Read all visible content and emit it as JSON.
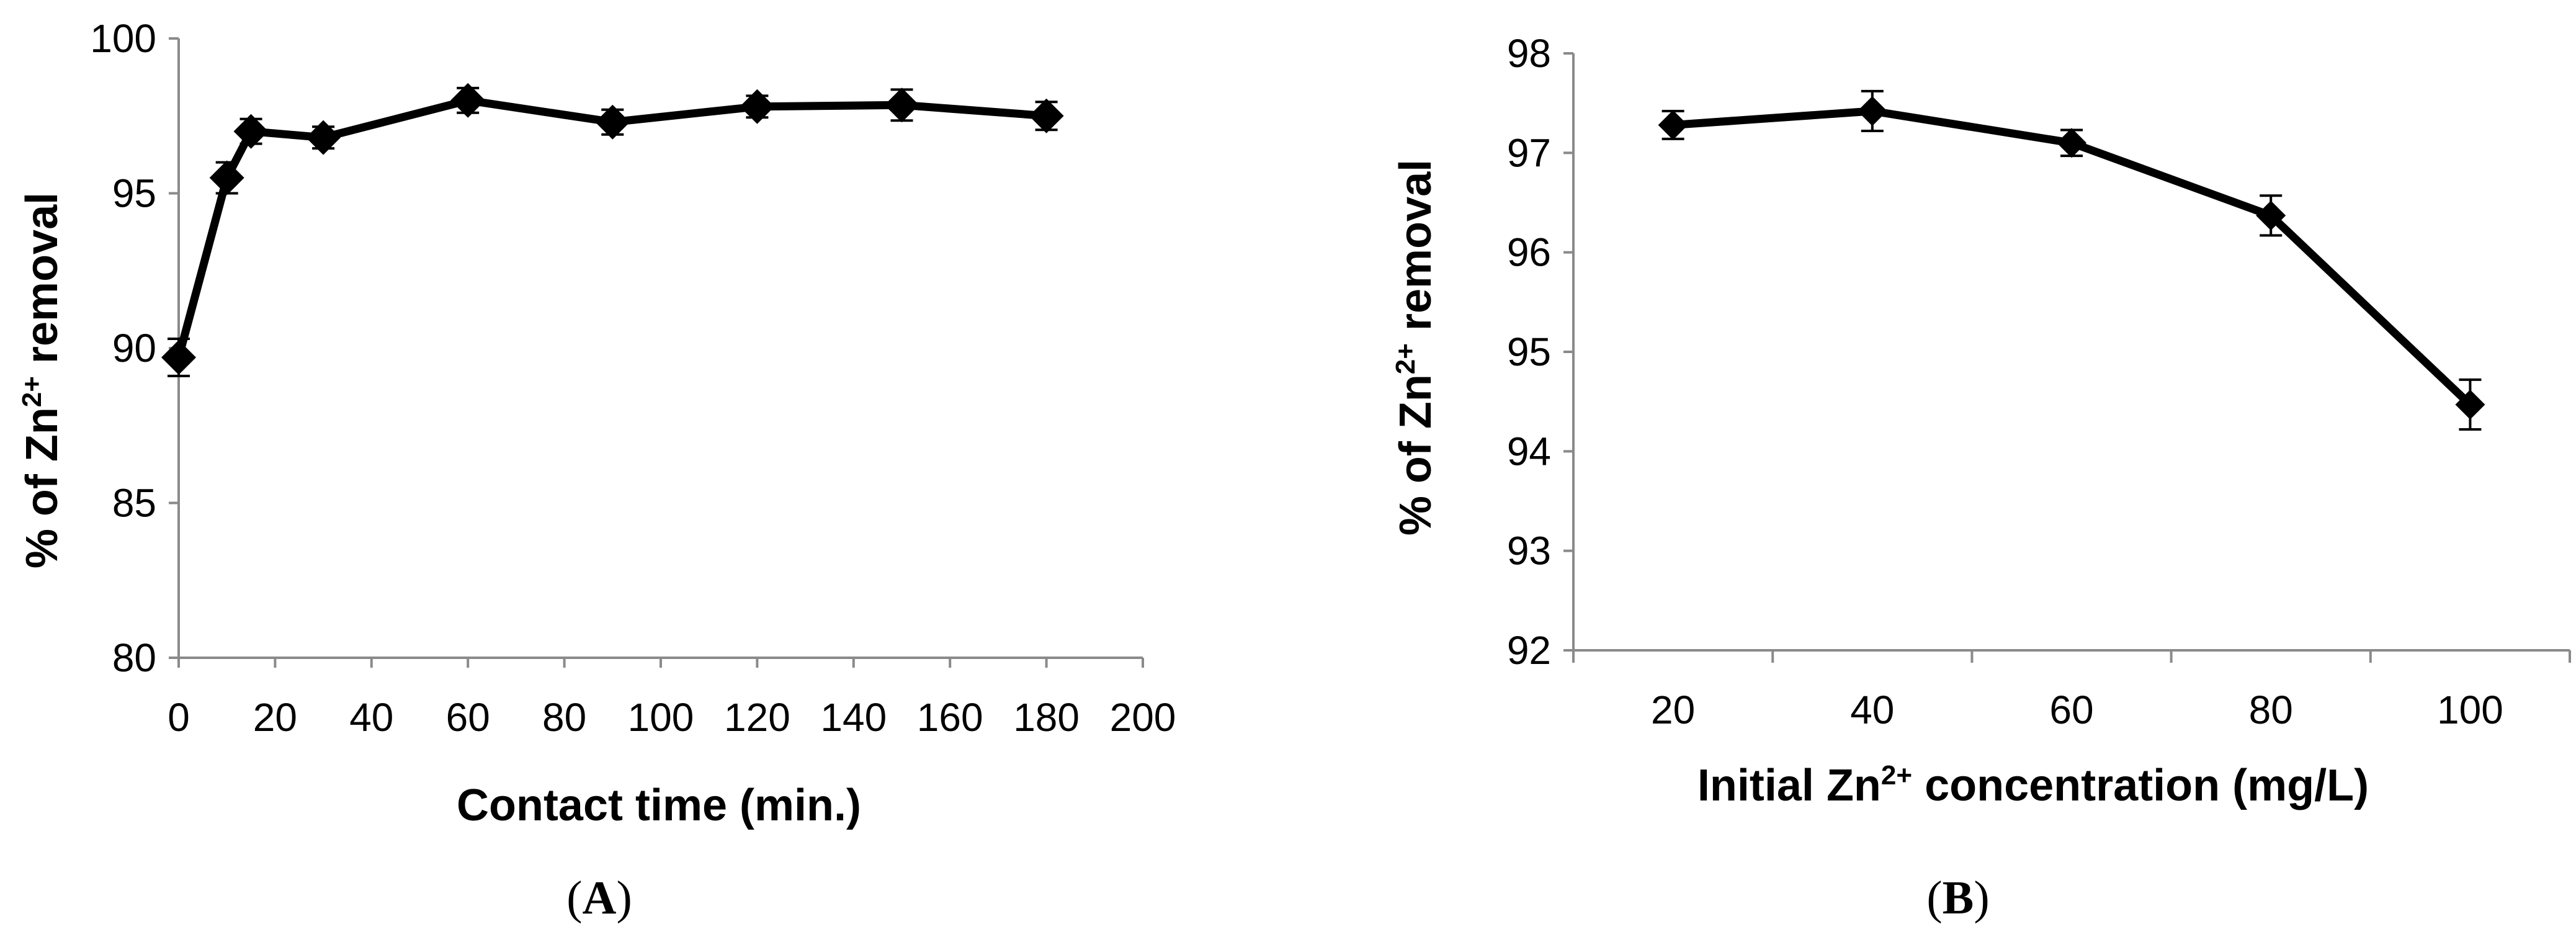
{
  "chart_data": [
    {
      "type": "line",
      "panel_label": "A",
      "xlabel": "Contact time (min.)",
      "ylabel_parts": [
        "% of Zn",
        "2+",
        " removal"
      ],
      "xlim": [
        0,
        200
      ],
      "ylim": [
        80,
        100
      ],
      "x_ticks": [
        0,
        20,
        40,
        60,
        80,
        100,
        120,
        140,
        160,
        180,
        200
      ],
      "y_ticks": [
        80,
        85,
        90,
        95,
        100
      ],
      "grid": false,
      "legend": "none",
      "marker": "diamond",
      "color": "#000000",
      "series": [
        {
          "x": [
            0,
            10,
            15,
            30,
            60,
            90,
            120,
            150,
            180
          ],
          "y": [
            89.7,
            95.5,
            97.0,
            96.8,
            98.0,
            97.3,
            97.8,
            97.85,
            97.5
          ],
          "error": [
            0.6,
            0.5,
            0.4,
            0.35,
            0.4,
            0.4,
            0.35,
            0.5,
            0.45
          ]
        }
      ]
    },
    {
      "type": "line",
      "panel_label": "B",
      "xlabel_parts": [
        "Initial Zn",
        "2+",
        " concentration (mg/L)"
      ],
      "ylabel_parts": [
        "% of Zn",
        "2+",
        " removal"
      ],
      "categories": [
        "20",
        "40",
        "60",
        "80",
        "100"
      ],
      "ylim": [
        92,
        98
      ],
      "y_ticks": [
        92,
        93,
        94,
        95,
        96,
        97,
        98
      ],
      "grid": false,
      "legend": "none",
      "marker": "diamond",
      "color": "#000000",
      "series": [
        {
          "values": [
            97.28,
            97.42,
            97.1,
            96.37,
            94.47
          ],
          "error": [
            0.14,
            0.2,
            0.13,
            0.2,
            0.25
          ]
        }
      ]
    }
  ]
}
